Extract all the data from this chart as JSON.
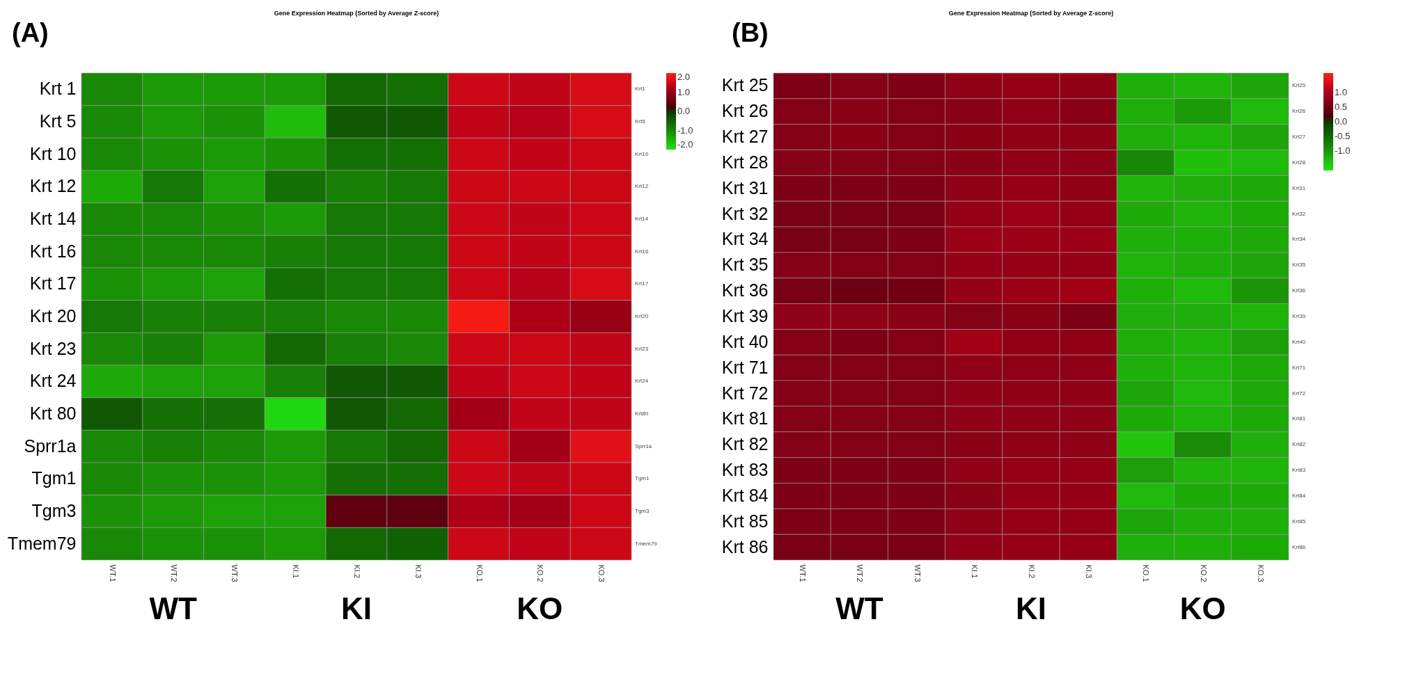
{
  "chart_data": [
    {
      "type": "heatmap",
      "title": "Gene Expression Heatmap (Sorted by Average Z-score)",
      "annotations": [
        "(A)",
        "WT",
        "KI",
        "KO"
      ],
      "categories": [
        "WT.1",
        "WT.2",
        "WT.3",
        "KI.1",
        "KI.2",
        "KI.3",
        "KO.1",
        "KO.2",
        "KO.3"
      ],
      "y_categories": [
        "Krt 1",
        "Krt 5",
        "Krt 10",
        "Krt 12",
        "Krt 14",
        "Krt 16",
        "Krt 17",
        "Krt 20",
        "Krt 23",
        "Krt 24",
        "Krt 80",
        "Sprr1a",
        "Tgm1",
        "Tgm3",
        "Tmem79"
      ],
      "y2_categories": [
        "Krt1",
        "Krt5",
        "Krt10",
        "Krt12",
        "Krt14",
        "Krt16",
        "Krt17",
        "Krt20",
        "Krt23",
        "Krt24",
        "Krt80",
        "Sprr1a",
        "Tgm1",
        "Tgm3",
        "Tmem79"
      ],
      "cells": [
        [
          -1.0,
          -1.2,
          -1.2,
          -1.2,
          -0.6,
          -0.7,
          1.5,
          1.4,
          1.6
        ],
        [
          -1.0,
          -1.2,
          -1.1,
          -1.6,
          -0.4,
          -0.4,
          1.4,
          1.3,
          1.6
        ],
        [
          -1.0,
          -1.1,
          -1.2,
          -1.1,
          -0.7,
          -0.7,
          1.5,
          1.4,
          1.5
        ],
        [
          -1.4,
          -0.8,
          -1.3,
          -0.7,
          -0.9,
          -0.8,
          1.5,
          1.5,
          1.5
        ],
        [
          -1.0,
          -1.0,
          -1.1,
          -1.2,
          -0.8,
          -0.8,
          1.5,
          1.4,
          1.5
        ],
        [
          -1.0,
          -1.0,
          -1.0,
          -0.9,
          -0.8,
          -0.8,
          1.5,
          1.4,
          1.5
        ],
        [
          -1.1,
          -1.2,
          -1.3,
          -0.7,
          -0.8,
          -0.8,
          1.5,
          1.3,
          1.6
        ],
        [
          -0.8,
          -0.9,
          -0.9,
          -0.9,
          -1.0,
          -1.0,
          1.9,
          1.2,
          1.0
        ],
        [
          -1.0,
          -0.9,
          -1.2,
          -0.6,
          -0.9,
          -1.0,
          1.5,
          1.5,
          1.4
        ],
        [
          -1.4,
          -1.3,
          -1.3,
          -0.9,
          -0.4,
          -0.4,
          1.4,
          1.5,
          1.4
        ],
        [
          -0.4,
          -0.7,
          -0.7,
          -1.9,
          -0.4,
          -0.6,
          1.1,
          1.4,
          1.4
        ],
        [
          -1.0,
          -0.9,
          -1.0,
          -1.2,
          -0.8,
          -0.6,
          1.5,
          1.1,
          1.7
        ],
        [
          -1.0,
          -1.1,
          -1.1,
          -1.2,
          -0.7,
          -0.7,
          1.5,
          1.4,
          1.5
        ],
        [
          -1.1,
          -1.2,
          -1.3,
          -1.3,
          0.4,
          0.4,
          1.2,
          1.1,
          1.5
        ],
        [
          -1.0,
          -1.1,
          -1.1,
          -1.2,
          -0.6,
          -0.5,
          1.5,
          1.4,
          1.5
        ]
      ],
      "clim": [
        -2.0,
        2.0
      ],
      "cticks": [
        {
          "value": 2,
          "label": "2.0"
        },
        {
          "value": 1,
          "label": "1.0"
        },
        {
          "value": 0,
          "label": "0.0"
        },
        {
          "value": -1,
          "label": "-1.0"
        },
        {
          "value": -2,
          "label": "-2.0"
        }
      ]
    },
    {
      "type": "heatmap",
      "title": "Gene Expression Heatmap (Sorted by Average Z-score)",
      "annotations": [
        "(B)",
        "WT",
        "KI",
        "KO"
      ],
      "categories": [
        "WT.1",
        "WT.2",
        "WT.3",
        "KI.1",
        "KI.2",
        "KI.3",
        "KO.1",
        "KO.2",
        "KO.3"
      ],
      "y_categories": [
        "Krt 25",
        "Krt 26",
        "Krt 27",
        "Krt 28",
        "Krt 31",
        "Krt 32",
        "Krt 34",
        "Krt 35",
        "Krt 36",
        "Krt 39",
        "Krt 40",
        "Krt 71",
        "Krt 72",
        "Krt 81",
        "Krt 82",
        "Krt 83",
        "Krt 84",
        "Krt 85",
        "Krt 86"
      ],
      "y2_categories": [
        "Krt25",
        "Krt26",
        "Krt27",
        "Krt28",
        "Krt31",
        "Krt32",
        "Krt34",
        "Krt35",
        "Krt36",
        "Krt39",
        "Krt40",
        "Krt71",
        "Krt72",
        "Krt81",
        "Krt82",
        "Krt83",
        "Krt84",
        "Krt85",
        "Krt86"
      ],
      "cells": [
        [
          0.6,
          0.65,
          0.6,
          0.75,
          0.8,
          0.75,
          -1.2,
          -1.25,
          -1.1
        ],
        [
          0.65,
          0.7,
          0.65,
          0.7,
          0.75,
          0.7,
          -1.2,
          -1.0,
          -1.3
        ],
        [
          0.65,
          0.7,
          0.65,
          0.7,
          0.75,
          0.75,
          -1.2,
          -1.25,
          -1.1
        ],
        [
          0.65,
          0.65,
          0.65,
          0.7,
          0.75,
          0.75,
          -0.8,
          -1.35,
          -1.3
        ],
        [
          0.6,
          0.6,
          0.6,
          0.75,
          0.8,
          0.75,
          -1.25,
          -1.2,
          -1.15
        ],
        [
          0.55,
          0.55,
          0.55,
          0.8,
          0.85,
          0.8,
          -1.15,
          -1.25,
          -1.15
        ],
        [
          0.55,
          0.55,
          0.6,
          0.85,
          0.85,
          0.85,
          -1.2,
          -1.2,
          -1.15
        ],
        [
          0.65,
          0.65,
          0.65,
          0.8,
          0.8,
          0.8,
          -1.25,
          -1.2,
          -1.1
        ],
        [
          0.55,
          0.45,
          0.5,
          0.8,
          0.85,
          0.9,
          -1.2,
          -1.3,
          -0.95
        ],
        [
          0.75,
          0.75,
          0.7,
          0.65,
          0.7,
          0.6,
          -1.2,
          -1.2,
          -1.25
        ],
        [
          0.65,
          0.6,
          0.65,
          0.9,
          0.75,
          0.75,
          -1.2,
          -1.25,
          -1.05
        ],
        [
          0.65,
          0.65,
          0.65,
          0.75,
          0.75,
          0.75,
          -1.2,
          -1.25,
          -1.15
        ],
        [
          0.65,
          0.65,
          0.65,
          0.75,
          0.75,
          0.75,
          -1.1,
          -1.3,
          -1.15
        ],
        [
          0.65,
          0.65,
          0.65,
          0.75,
          0.75,
          0.75,
          -1.15,
          -1.25,
          -1.15
        ],
        [
          0.65,
          0.65,
          0.65,
          0.7,
          0.75,
          0.75,
          -1.4,
          -0.85,
          -1.2
        ],
        [
          0.6,
          0.6,
          0.6,
          0.75,
          0.8,
          0.8,
          -1.05,
          -1.25,
          -1.25
        ],
        [
          0.6,
          0.6,
          0.6,
          0.7,
          0.8,
          0.8,
          -1.3,
          -1.15,
          -1.15
        ],
        [
          0.6,
          0.6,
          0.6,
          0.75,
          0.8,
          0.8,
          -1.1,
          -1.2,
          -1.2
        ],
        [
          0.55,
          0.55,
          0.55,
          0.75,
          0.8,
          0.8,
          -1.2,
          -1.2,
          -1.15
        ]
      ],
      "clim": [
        -1.65,
        1.65
      ],
      "cticks": [
        {
          "value": 1,
          "label": "1.0"
        },
        {
          "value": 0.5,
          "label": "0.5"
        },
        {
          "value": 0,
          "label": "0.0"
        },
        {
          "value": -0.5,
          "label": "-0.5"
        },
        {
          "value": -1,
          "label": "-1.0"
        }
      ]
    }
  ]
}
